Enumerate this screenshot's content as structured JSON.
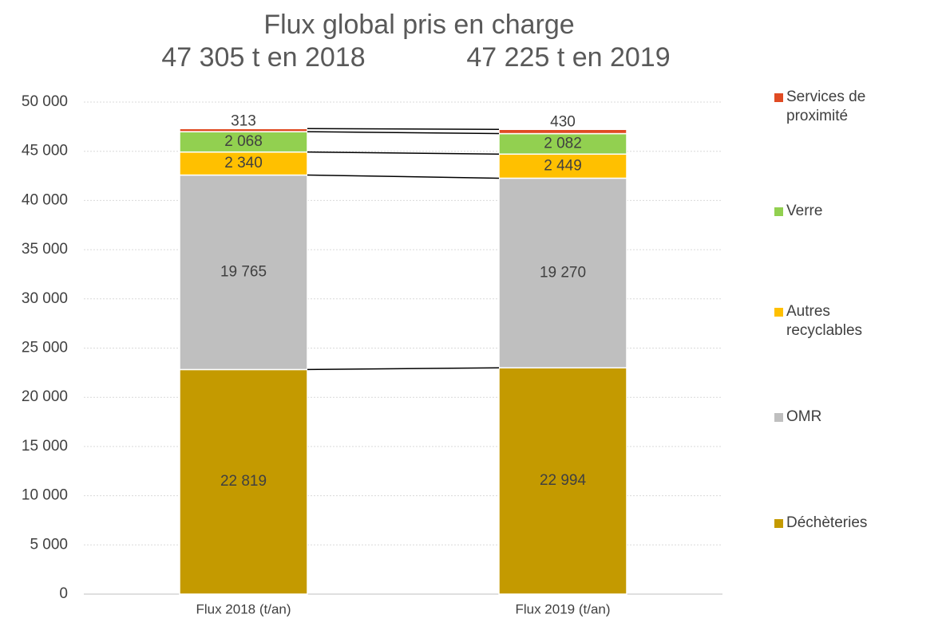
{
  "chart_data": {
    "type": "stacked_bar",
    "title": "Flux global pris en charge",
    "subtitles": [
      "47 305 t en 2018",
      "47 225 t en 2019"
    ],
    "categories": [
      "Flux 2018 (t/an)",
      "Flux 2019 (t/an)"
    ],
    "series": [
      {
        "name": "Déchèteries",
        "color": "#c49a00",
        "values": [
          22819,
          22994
        ],
        "value_labels": [
          "22 819",
          "22 994"
        ]
      },
      {
        "name": "OMR",
        "color": "#bfbfbf",
        "values": [
          19765,
          19270
        ],
        "value_labels": [
          "19 765",
          "19 270"
        ]
      },
      {
        "name": "Autres recyclables",
        "color": "#ffc000",
        "values": [
          2340,
          2449
        ],
        "value_labels": [
          "2 340",
          "2 449"
        ]
      },
      {
        "name": "Verre",
        "color": "#92d050",
        "values": [
          2068,
          2082
        ],
        "value_labels": [
          "2 068",
          "2 082"
        ]
      },
      {
        "name": "Services de proximité",
        "color": "#e04b23",
        "values": [
          313,
          430
        ],
        "value_labels": [
          "313",
          "430"
        ]
      }
    ],
    "ylim": [
      0,
      50000
    ],
    "yticks": [
      0,
      {
        "value": 5000,
        "label": "5 000"
      },
      {
        "value": 10000,
        "label": "10 000"
      },
      {
        "value": 15000,
        "label": "15 000"
      },
      {
        "value": 20000,
        "label": "20 000"
      },
      {
        "value": 25000,
        "label": "25 000"
      },
      {
        "value": 30000,
        "label": "30 000"
      },
      {
        "value": 35000,
        "label": "35 000"
      },
      {
        "value": 40000,
        "label": "40 000"
      },
      {
        "value": 45000,
        "label": "45 000"
      },
      {
        "value": 50000,
        "label": "50 000"
      }
    ],
    "grid": true,
    "legend": "right"
  }
}
